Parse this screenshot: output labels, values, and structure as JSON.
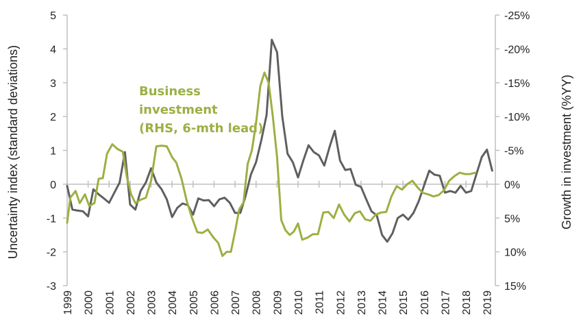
{
  "chart_data": {
    "type": "line",
    "ylabel": "Uncertainty index (standard deviations)",
    "y2label": "Growth in investment (%YY)",
    "ylim": [
      -3,
      5
    ],
    "y2lim": [
      15,
      -25
    ],
    "y2_inverted": true,
    "xlim": [
      1999,
      2019.4
    ],
    "y_ticks": [
      "5",
      "4",
      "3",
      "2",
      "1",
      "0",
      "-1",
      "-2",
      "-3"
    ],
    "y2_ticks": [
      "-25%",
      "-20%",
      "-15%",
      "-10%",
      "-5%",
      "0%",
      "5%",
      "10%",
      "15%"
    ],
    "x_ticks": [
      "1999",
      "2000",
      "2001",
      "2002",
      "2003",
      "2004",
      "2005",
      "2006",
      "2007",
      "2008",
      "2009",
      "2010",
      "2011",
      "2012",
      "2013",
      "2014",
      "2015",
      "2016",
      "2017",
      "2018",
      "2019"
    ],
    "annotation": [
      "Business",
      "investment",
      "(RHS, 6-mth lead)"
    ],
    "series": [
      {
        "color": "#5f5f5f",
        "axis": "left",
        "points": [
          [
            1999.0,
            -0.05
          ],
          [
            1999.25,
            -0.75
          ],
          [
            1999.5,
            -0.78
          ],
          [
            1999.75,
            -0.8
          ],
          [
            2000.0,
            -0.95
          ],
          [
            2000.25,
            -0.15
          ],
          [
            2000.5,
            -0.3
          ],
          [
            2000.75,
            -0.42
          ],
          [
            2001.0,
            -0.55
          ],
          [
            2001.25,
            -0.25
          ],
          [
            2001.5,
            0.05
          ],
          [
            2001.75,
            0.95
          ],
          [
            2002.0,
            -0.6
          ],
          [
            2002.25,
            -0.75
          ],
          [
            2002.5,
            -0.2
          ],
          [
            2002.75,
            0.05
          ],
          [
            2003.0,
            0.47
          ],
          [
            2003.25,
            0.05
          ],
          [
            2003.5,
            -0.15
          ],
          [
            2003.75,
            -0.45
          ],
          [
            2004.0,
            -0.97
          ],
          [
            2004.25,
            -0.7
          ],
          [
            2004.5,
            -0.57
          ],
          [
            2004.75,
            -0.62
          ],
          [
            2005.0,
            -0.9
          ],
          [
            2005.25,
            -0.42
          ],
          [
            2005.5,
            -0.48
          ],
          [
            2005.75,
            -0.47
          ],
          [
            2006.0,
            -0.65
          ],
          [
            2006.25,
            -0.45
          ],
          [
            2006.5,
            -0.4
          ],
          [
            2006.75,
            -0.55
          ],
          [
            2007.0,
            -0.85
          ],
          [
            2007.25,
            -0.85
          ],
          [
            2007.5,
            -0.35
          ],
          [
            2007.75,
            0.28
          ],
          [
            2008.0,
            0.65
          ],
          [
            2008.25,
            1.3
          ],
          [
            2008.5,
            2.05
          ],
          [
            2008.75,
            4.27
          ],
          [
            2009.0,
            3.9
          ],
          [
            2009.25,
            2.0
          ],
          [
            2009.5,
            0.9
          ],
          [
            2009.75,
            0.65
          ],
          [
            2010.0,
            0.2
          ],
          [
            2010.25,
            0.7
          ],
          [
            2010.5,
            1.15
          ],
          [
            2010.75,
            0.95
          ],
          [
            2011.0,
            0.85
          ],
          [
            2011.25,
            0.55
          ],
          [
            2011.5,
            1.1
          ],
          [
            2011.75,
            1.58
          ],
          [
            2012.0,
            0.7
          ],
          [
            2012.25,
            0.42
          ],
          [
            2012.5,
            0.45
          ],
          [
            2012.75,
            -0.02
          ],
          [
            2013.0,
            -0.08
          ],
          [
            2013.25,
            -0.45
          ],
          [
            2013.5,
            -0.8
          ],
          [
            2013.75,
            -0.92
          ],
          [
            2014.0,
            -1.5
          ],
          [
            2014.25,
            -1.7
          ],
          [
            2014.5,
            -1.45
          ],
          [
            2014.75,
            -1.0
          ],
          [
            2015.0,
            -0.9
          ],
          [
            2015.25,
            -1.05
          ],
          [
            2015.5,
            -0.85
          ],
          [
            2015.75,
            -0.5
          ],
          [
            2016.0,
            -0.05
          ],
          [
            2016.25,
            0.4
          ],
          [
            2016.5,
            0.28
          ],
          [
            2016.75,
            0.25
          ],
          [
            2017.0,
            -0.25
          ],
          [
            2017.25,
            -0.2
          ],
          [
            2017.5,
            -0.25
          ],
          [
            2017.75,
            -0.05
          ],
          [
            2018.0,
            -0.25
          ],
          [
            2018.25,
            -0.2
          ],
          [
            2018.5,
            0.3
          ],
          [
            2018.75,
            0.8
          ],
          [
            2019.0,
            1.02
          ],
          [
            2019.25,
            0.4
          ]
        ]
      },
      {
        "color": "#9bb043",
        "axis": "right",
        "points": [
          [
            1999.0,
            5.7
          ],
          [
            1999.15,
            2.0
          ],
          [
            1999.4,
            1.0
          ],
          [
            1999.6,
            2.8
          ],
          [
            1999.85,
            1.5
          ],
          [
            2000.05,
            3.2
          ],
          [
            2000.3,
            2.8
          ],
          [
            2000.5,
            -0.8
          ],
          [
            2000.7,
            -0.9
          ],
          [
            2000.9,
            -4.5
          ],
          [
            2001.15,
            -5.9
          ],
          [
            2001.4,
            -5.2
          ],
          [
            2001.65,
            -4.8
          ],
          [
            2001.85,
            -1.0
          ],
          [
            2002.05,
            1.5
          ],
          [
            2002.25,
            2.8
          ],
          [
            2002.5,
            2.3
          ],
          [
            2002.75,
            2.0
          ],
          [
            2003.0,
            -0.5
          ],
          [
            2003.25,
            -5.6
          ],
          [
            2003.5,
            -5.7
          ],
          [
            2003.75,
            -5.6
          ],
          [
            2004.0,
            -4.0
          ],
          [
            2004.2,
            -3.2
          ],
          [
            2004.45,
            -0.8
          ],
          [
            2004.7,
            2.5
          ],
          [
            2004.95,
            5.0
          ],
          [
            2005.2,
            7.1
          ],
          [
            2005.45,
            7.2
          ],
          [
            2005.7,
            6.7
          ],
          [
            2005.95,
            7.8
          ],
          [
            2006.2,
            8.7
          ],
          [
            2006.4,
            10.6
          ],
          [
            2006.6,
            10.0
          ],
          [
            2006.8,
            10.0
          ],
          [
            2007.0,
            7.0
          ],
          [
            2007.2,
            3.7
          ],
          [
            2007.4,
            2.7
          ],
          [
            2007.6,
            -3.0
          ],
          [
            2007.8,
            -5.0
          ],
          [
            2008.0,
            -9.0
          ],
          [
            2008.2,
            -14.5
          ],
          [
            2008.4,
            -16.5
          ],
          [
            2008.6,
            -15.0
          ],
          [
            2008.8,
            -10.0
          ],
          [
            2009.0,
            -4.0
          ],
          [
            2009.2,
            5.3
          ],
          [
            2009.4,
            6.8
          ],
          [
            2009.6,
            7.5
          ],
          [
            2009.8,
            7.0
          ],
          [
            2010.0,
            5.8
          ],
          [
            2010.2,
            8.2
          ],
          [
            2010.45,
            7.9
          ],
          [
            2010.7,
            7.4
          ],
          [
            2010.95,
            7.4
          ],
          [
            2011.2,
            4.2
          ],
          [
            2011.45,
            4.1
          ],
          [
            2011.7,
            5.0
          ],
          [
            2011.95,
            3.0
          ],
          [
            2012.2,
            4.5
          ],
          [
            2012.45,
            5.5
          ],
          [
            2012.7,
            4.3
          ],
          [
            2012.95,
            4.0
          ],
          [
            2013.2,
            5.2
          ],
          [
            2013.45,
            5.4
          ],
          [
            2013.7,
            4.5
          ],
          [
            2013.95,
            4.2
          ],
          [
            2014.2,
            4.1
          ],
          [
            2014.45,
            1.8
          ],
          [
            2014.7,
            0.3
          ],
          [
            2014.95,
            0.8
          ],
          [
            2015.2,
            0.0
          ],
          [
            2015.45,
            -0.5
          ],
          [
            2015.7,
            0.5
          ],
          [
            2015.95,
            1.3
          ],
          [
            2016.2,
            1.5
          ],
          [
            2016.45,
            1.8
          ],
          [
            2016.7,
            1.6
          ],
          [
            2016.95,
            0.9
          ],
          [
            2017.2,
            -0.5
          ],
          [
            2017.45,
            -1.2
          ],
          [
            2017.7,
            -1.7
          ],
          [
            2017.95,
            -1.5
          ],
          [
            2018.2,
            -1.5
          ],
          [
            2018.45,
            -1.7
          ]
        ]
      }
    ]
  }
}
